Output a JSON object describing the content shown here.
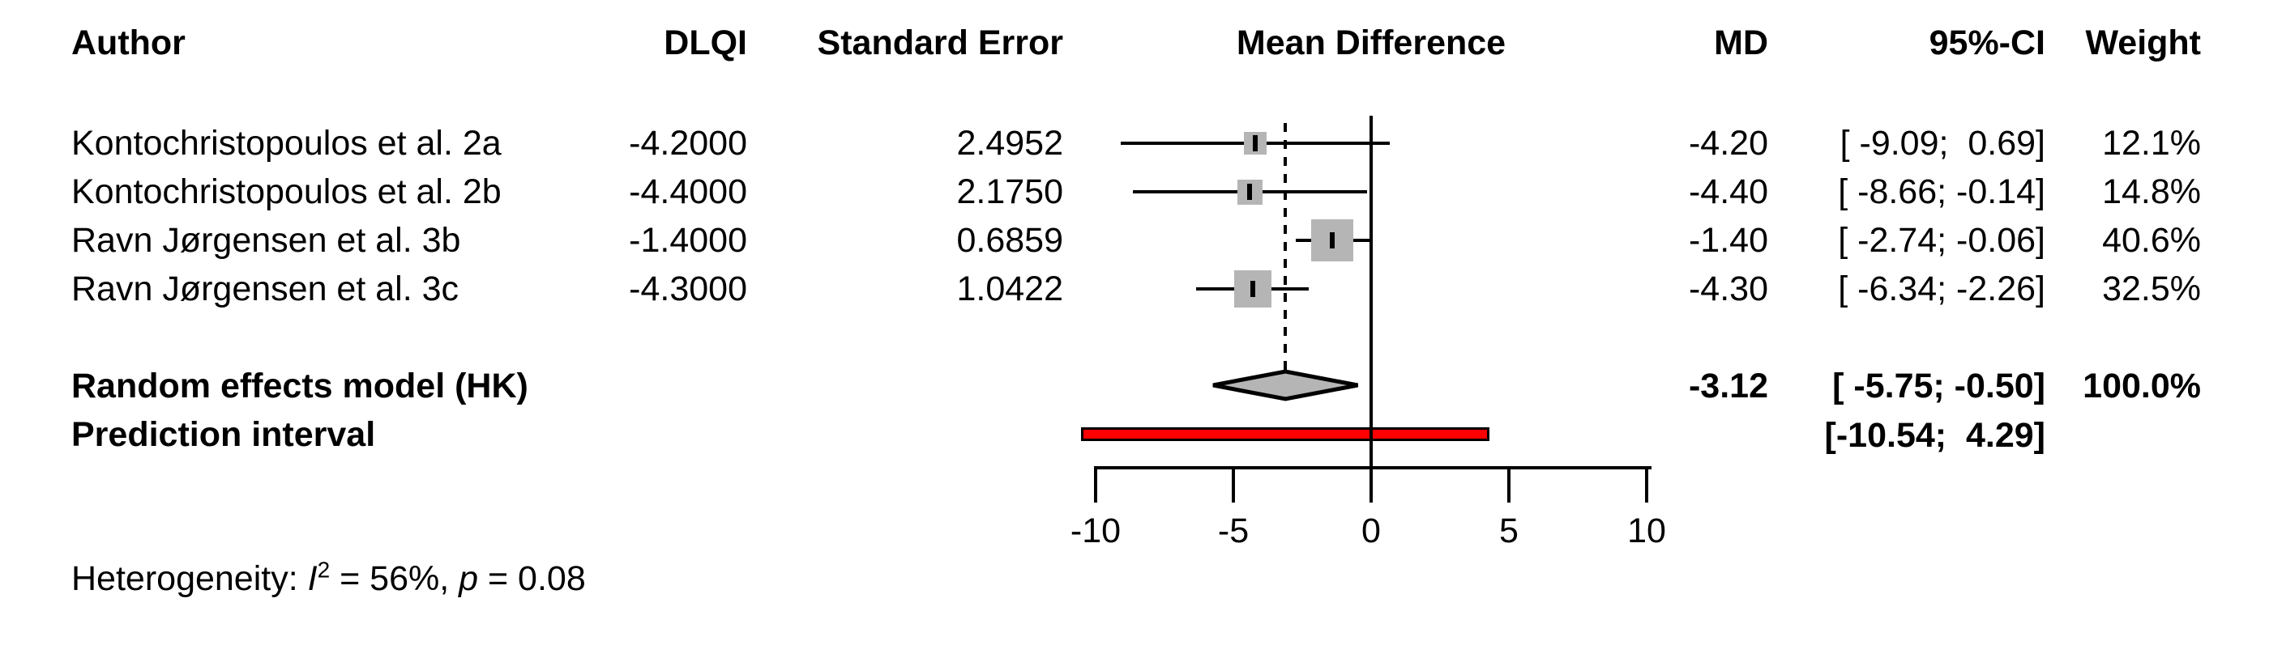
{
  "table": {
    "headers": {
      "author": "Author",
      "dlqi": "DLQI",
      "se": "Standard Error",
      "plot": "Mean Difference",
      "md": "MD",
      "ci": "95%-CI",
      "weight": "Weight"
    },
    "rows": [
      {
        "author": "Kontochristopoulos et al. 2a",
        "dlqi": "-4.2000",
        "se": "2.4952",
        "md": "-4.20",
        "ci": "[ -9.09;  0.69]",
        "weight": "12.1%"
      },
      {
        "author": "Kontochristopoulos et al. 2b",
        "dlqi": "-4.4000",
        "se": "2.1750",
        "md": "-4.40",
        "ci": "[ -8.66; -0.14]",
        "weight": "14.8%"
      },
      {
        "author": "Ravn Jørgensen et al. 3b",
        "dlqi": "-1.4000",
        "se": "0.6859",
        "md": "-1.40",
        "ci": "[ -2.74; -0.06]",
        "weight": "40.6%"
      },
      {
        "author": "Ravn Jørgensen et al. 3c",
        "dlqi": "-4.3000",
        "se": "1.0422",
        "md": "-4.30",
        "ci": "[ -6.34; -2.26]",
        "weight": "32.5%"
      }
    ],
    "summary_row": {
      "label": "Random effects model (HK)",
      "md": "-3.12",
      "ci": "[ -5.75; -0.50]",
      "weight": "100.0%"
    },
    "prediction_row": {
      "label": "Prediction interval",
      "ci": "[-10.54;  4.29]"
    }
  },
  "footnote": {
    "prefix": "Heterogeneity: ",
    "i_symbol": "I",
    "i_sup": "2",
    "i_value": " = 56%, ",
    "p_symbol": "p",
    "p_value": " = 0.08"
  },
  "chart_data": {
    "type": "forest",
    "xlabel": "Mean Difference",
    "xlim": [
      -10,
      10
    ],
    "axis_ticks": [
      -10,
      -5,
      0,
      5,
      10
    ],
    "axis_tick_labels": [
      "-10",
      "-5",
      "0",
      "5",
      "10"
    ],
    "reference_line": 0,
    "pooled_effect_line": -3.12,
    "studies": [
      {
        "label": "Kontochristopoulos et al. 2a",
        "md": -4.2,
        "ci_low": -9.09,
        "ci_high": 0.69,
        "weight_pct": 12.1
      },
      {
        "label": "Kontochristopoulos et al. 2b",
        "md": -4.4,
        "ci_low": -8.66,
        "ci_high": -0.14,
        "weight_pct": 14.8
      },
      {
        "label": "Ravn Jørgensen et al. 3b",
        "md": -1.4,
        "ci_low": -2.74,
        "ci_high": -0.06,
        "weight_pct": 40.6
      },
      {
        "label": "Ravn Jørgensen et al. 3c",
        "md": -4.3,
        "ci_low": -6.34,
        "ci_high": -2.26,
        "weight_pct": 32.5
      }
    ],
    "summary": {
      "label": "Random effects model (HK)",
      "md": -3.12,
      "ci_low": -5.75,
      "ci_high": -0.5,
      "weight_pct": 100.0
    },
    "prediction_interval": {
      "ci_low": -10.54,
      "ci_high": 4.29
    },
    "heterogeneity": {
      "i_squared_pct": 56,
      "p_value": 0.08
    },
    "colors": {
      "square_fill": "#b5b5b5",
      "diamond_fill": "#b5b5b5",
      "prediction_bar_fill": "#ff0000",
      "line": "#000000"
    }
  }
}
